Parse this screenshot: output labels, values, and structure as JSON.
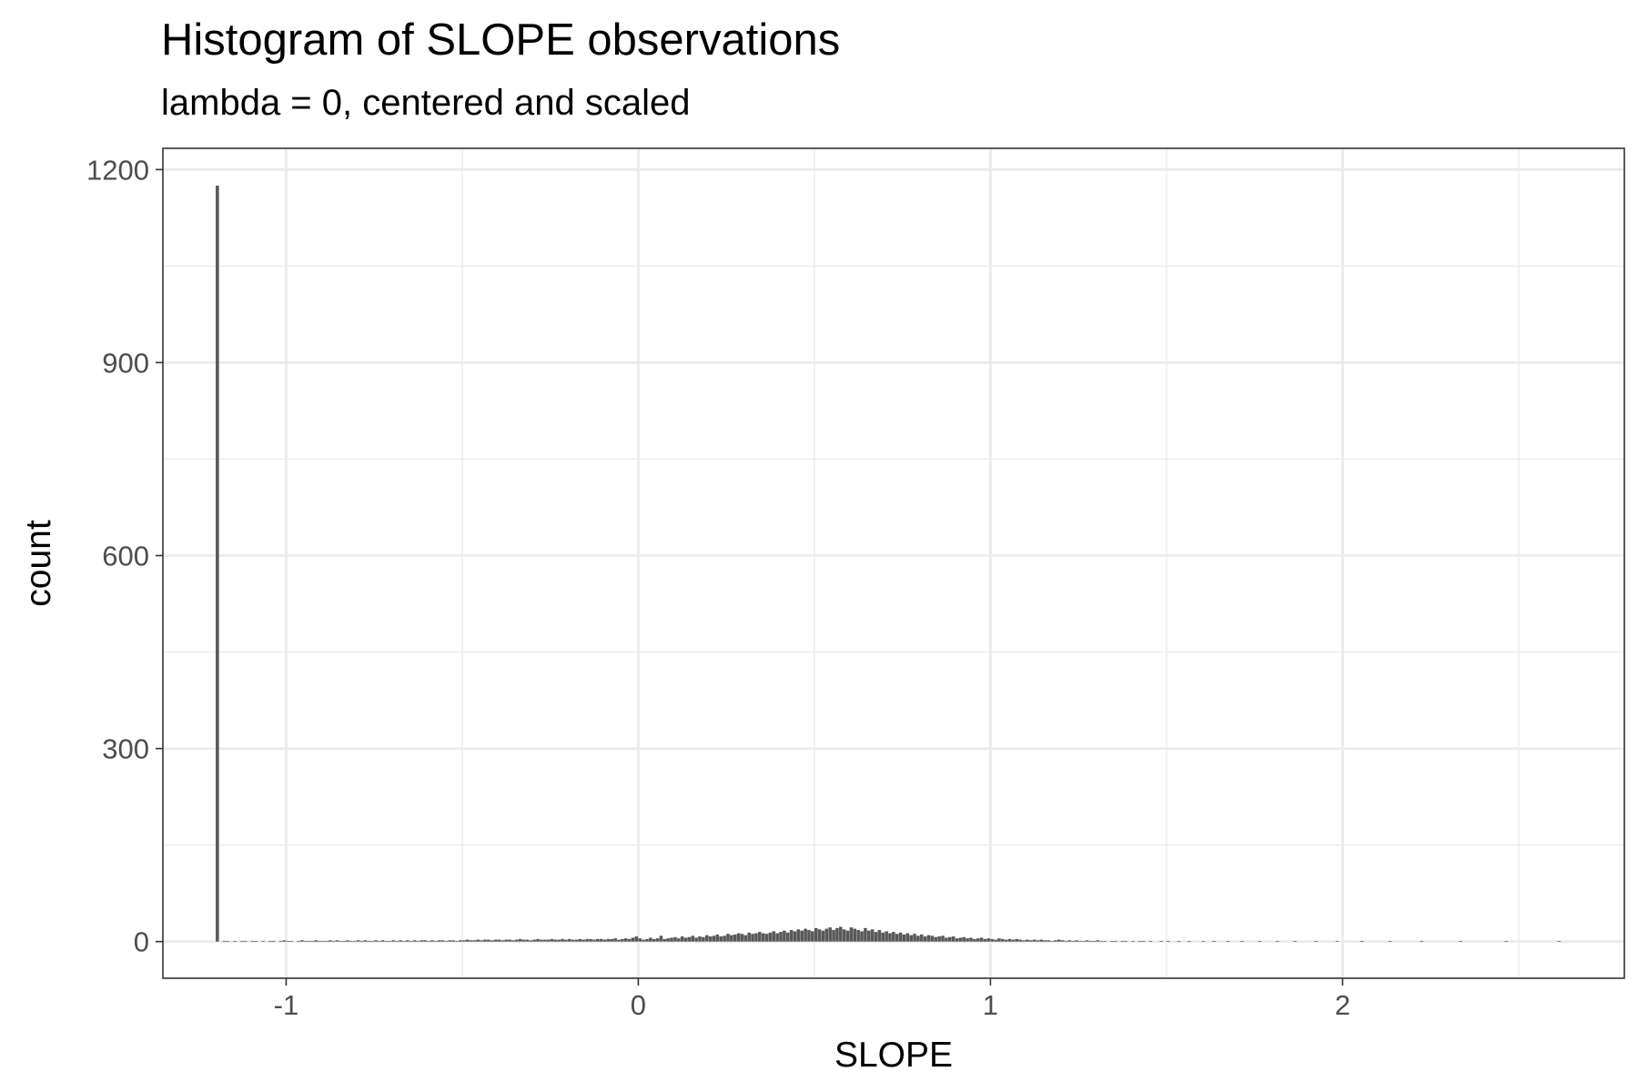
{
  "chart_data": {
    "type": "bar",
    "title": "Histogram of SLOPE observations",
    "subtitle": "lambda = 0, centered and scaled",
    "xlabel": "SLOPE",
    "ylabel": "count",
    "xlim": [
      -1.35,
      2.8
    ],
    "ylim": [
      -57,
      1233
    ],
    "x_ticks": [
      -1,
      0,
      1,
      2
    ],
    "x_tick_labels": [
      "-1",
      "0",
      "1",
      "2"
    ],
    "y_ticks": [
      0,
      300,
      600,
      900,
      1200
    ],
    "y_tick_labels": [
      "0",
      "300",
      "600",
      "900",
      "1200"
    ],
    "grid": true,
    "bar_color": "#595959",
    "bins": {
      "start": -1.2,
      "width": 0.01,
      "counts": [
        1175,
        0,
        1,
        1,
        0,
        1,
        0,
        1,
        1,
        0,
        1,
        1,
        0,
        1,
        0,
        1,
        1,
        0,
        1,
        2,
        1,
        1,
        0,
        1,
        2,
        1,
        1,
        1,
        2,
        1,
        1,
        1,
        2,
        1,
        2,
        1,
        1,
        2,
        1,
        1,
        2,
        1,
        2,
        1,
        1,
        2,
        1,
        2,
        1,
        1,
        2,
        1,
        2,
        1,
        2,
        1,
        2,
        1,
        2,
        2,
        1,
        2,
        1,
        2,
        2,
        1,
        2,
        2,
        1,
        2,
        2,
        3,
        2,
        2,
        3,
        2,
        3,
        3,
        2,
        3,
        3,
        2,
        3,
        3,
        2,
        3,
        4,
        3,
        3,
        2,
        3,
        4,
        3,
        3,
        3,
        4,
        3,
        3,
        4,
        3,
        4,
        3,
        3,
        4,
        3,
        4,
        4,
        3,
        4,
        4,
        3,
        4,
        4,
        5,
        3,
        4,
        5,
        4,
        6,
        8,
        5,
        3,
        4,
        6,
        4,
        5,
        9,
        4,
        5,
        6,
        7,
        5,
        8,
        6,
        7,
        9,
        6,
        8,
        7,
        10,
        8,
        9,
        11,
        8,
        9,
        12,
        10,
        11,
        13,
        12,
        10,
        14,
        12,
        13,
        15,
        13,
        12,
        14,
        16,
        13,
        15,
        17,
        14,
        18,
        16,
        19,
        17,
        20,
        18,
        16,
        21,
        19,
        17,
        20,
        22,
        18,
        21,
        23,
        19,
        17,
        22,
        20,
        18,
        16,
        21,
        17,
        19,
        15,
        18,
        14,
        16,
        13,
        15,
        12,
        14,
        11,
        13,
        10,
        12,
        9,
        11,
        8,
        10,
        9,
        7,
        8,
        9,
        6,
        7,
        8,
        5,
        6,
        7,
        5,
        6,
        4,
        5,
        6,
        4,
        5,
        4,
        3,
        5,
        4,
        3,
        4,
        3,
        4,
        3,
        2,
        3,
        2,
        3,
        2,
        3,
        2,
        2,
        1,
        2,
        3,
        2,
        1,
        2,
        1,
        2,
        1,
        1,
        2,
        1,
        1,
        2,
        1,
        1,
        0,
        1,
        1,
        0,
        1,
        1,
        0,
        1,
        0,
        1,
        1,
        0,
        1,
        0,
        0,
        1,
        0,
        1,
        0,
        0,
        1,
        0,
        0,
        1,
        0,
        0,
        0,
        1,
        0,
        0,
        1,
        0,
        0,
        0,
        1,
        0,
        0,
        0,
        1,
        0,
        0,
        0,
        0,
        1,
        0,
        0,
        0,
        0,
        1,
        0,
        0,
        0,
        0,
        1,
        0,
        0,
        0,
        0,
        0,
        1,
        0,
        0,
        0,
        0,
        0,
        1,
        0,
        0,
        0,
        0,
        0,
        0,
        1,
        0,
        0,
        0,
        0,
        0,
        0,
        0,
        1,
        0,
        0,
        0,
        0,
        0,
        0,
        0,
        0,
        1,
        0,
        0,
        0,
        0,
        0,
        0,
        0,
        0,
        0,
        0,
        1,
        0,
        0,
        0,
        0,
        0,
        0,
        0,
        0,
        0,
        0,
        0,
        0,
        1,
        0,
        0,
        0,
        0,
        0,
        0,
        0,
        0,
        0,
        0,
        0,
        0,
        0,
        0,
        1
      ]
    }
  }
}
